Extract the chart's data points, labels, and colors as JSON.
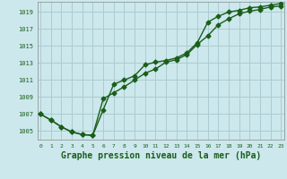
{
  "title": "Graphe pression niveau de la mer (hPa)",
  "bg_color": "#cce8ec",
  "grid_color": "#aaccd0",
  "line_color": "#1a5e1a",
  "ytick_labels": [
    "1005",
    "1007",
    "1009",
    "1011",
    "1013",
    "1015",
    "1017",
    "1019"
  ],
  "ytick_vals": [
    1005,
    1007,
    1009,
    1011,
    1013,
    1015,
    1017,
    1019
  ],
  "xtick_vals": [
    0,
    1,
    2,
    3,
    4,
    5,
    6,
    7,
    8,
    9,
    10,
    11,
    12,
    13,
    14,
    15,
    16,
    17,
    18,
    19,
    20,
    21,
    22,
    23
  ],
  "xlim": [
    -0.3,
    23.3
  ],
  "ylim": [
    1004.0,
    1020.2
  ],
  "series1_x": [
    0,
    1,
    2,
    3,
    4,
    5,
    6,
    7,
    8,
    9,
    10,
    11,
    12,
    13,
    14,
    15,
    16,
    17,
    18,
    19,
    20,
    21,
    22,
    23
  ],
  "series1_y": [
    1007.0,
    1006.3,
    1005.5,
    1004.9,
    1004.6,
    1004.5,
    1008.8,
    1009.5,
    1010.2,
    1011.0,
    1011.8,
    1012.3,
    1013.1,
    1013.4,
    1014.0,
    1015.2,
    1016.2,
    1017.5,
    1018.2,
    1018.8,
    1019.1,
    1019.3,
    1019.6,
    1019.7
  ],
  "series2_x": [
    0,
    1,
    2,
    3,
    4,
    5,
    6,
    7,
    8,
    9,
    10,
    11,
    12,
    13,
    14,
    15,
    16,
    17,
    18,
    19,
    20,
    21,
    22,
    23
  ],
  "series2_y": [
    1007.0,
    1006.3,
    1005.5,
    1004.9,
    1004.6,
    1004.5,
    1007.5,
    1010.5,
    1011.0,
    1011.5,
    1012.8,
    1013.1,
    1013.3,
    1013.6,
    1014.2,
    1015.4,
    1017.8,
    1018.5,
    1019.0,
    1019.2,
    1019.5,
    1019.6,
    1019.8,
    1020.0
  ],
  "marker": "D",
  "marker_size": 2.5,
  "linewidth": 1.0,
  "title_fontsize": 7,
  "tick_fontsize": 5,
  "xtick_fontsize": 4.5
}
